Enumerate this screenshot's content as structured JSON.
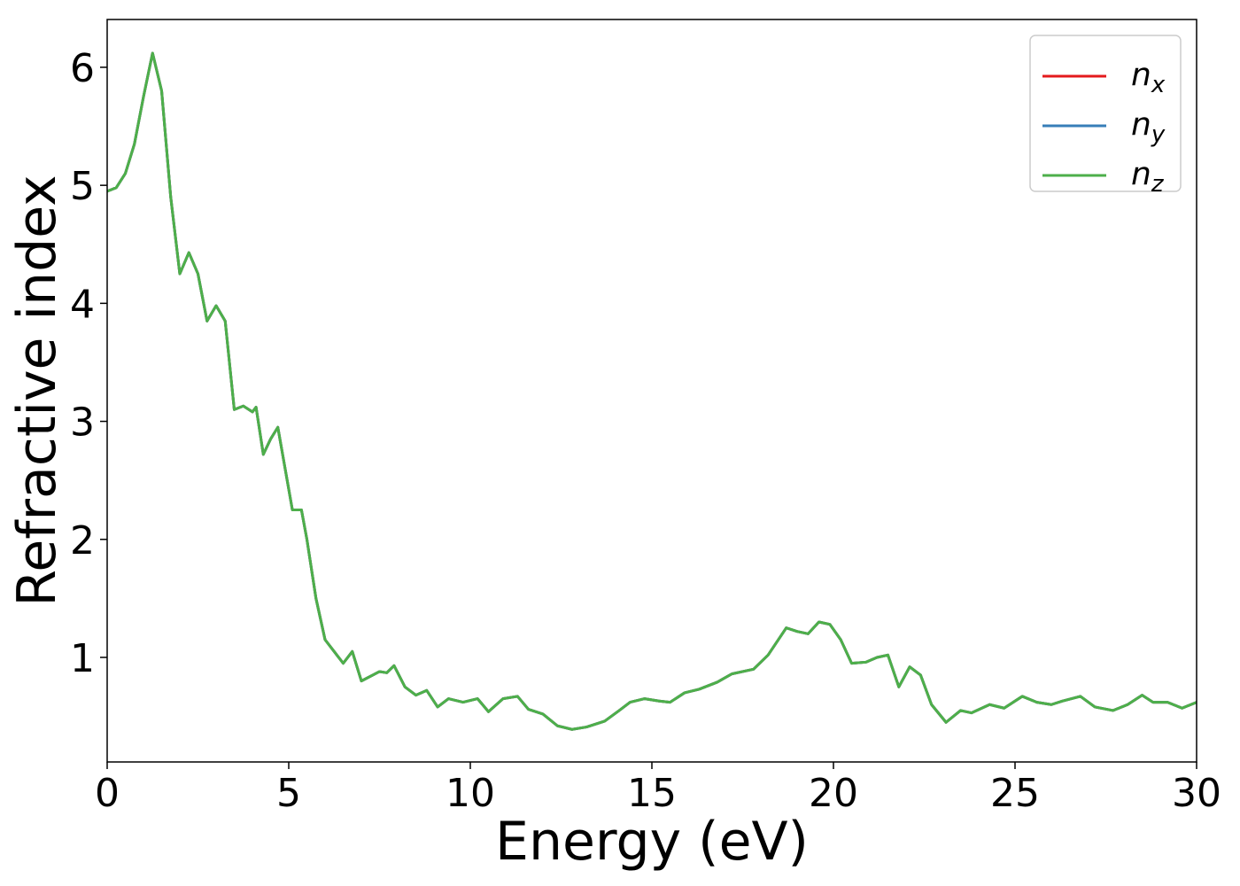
{
  "chart_data": {
    "type": "line",
    "xlabel": "Energy (eV)",
    "ylabel": "Refractive index",
    "x": [
      0,
      0.25,
      0.5,
      0.75,
      1.0,
      1.25,
      1.5,
      1.75,
      2.0,
      2.25,
      2.5,
      2.75,
      3.0,
      3.25,
      3.5,
      3.75,
      4.0,
      4.1,
      4.3,
      4.5,
      4.7,
      4.9,
      5.1,
      5.35,
      5.5,
      5.75,
      6.0,
      6.25,
      6.5,
      6.75,
      7.0,
      7.5,
      7.7,
      7.9,
      8.2,
      8.5,
      8.8,
      9.1,
      9.4,
      9.8,
      10.2,
      10.5,
      10.9,
      11.3,
      11.6,
      12.0,
      12.4,
      12.8,
      13.2,
      13.7,
      14.1,
      14.4,
      14.8,
      15.2,
      15.5,
      15.9,
      16.3,
      16.8,
      17.2,
      17.8,
      18.2,
      18.7,
      19.0,
      19.3,
      19.6,
      19.9,
      20.2,
      20.5,
      20.9,
      21.2,
      21.5,
      21.8,
      22.1,
      22.4,
      22.7,
      23.1,
      23.5,
      23.8,
      24.3,
      24.7,
      25.2,
      25.6,
      26.0,
      26.3,
      26.8,
      27.2,
      27.7,
      28.1,
      28.5,
      28.8,
      29.2,
      29.6,
      30.0
    ],
    "series": [
      {
        "name": "n_x",
        "color": "#e41a1c",
        "values": [
          4.95,
          4.98,
          5.1,
          5.35,
          5.75,
          6.12,
          5.8,
          4.9,
          4.25,
          4.43,
          4.25,
          3.85,
          3.98,
          3.85,
          3.1,
          3.13,
          3.08,
          3.12,
          2.72,
          2.85,
          2.95,
          2.6,
          2.25,
          2.25,
          2.0,
          1.5,
          1.15,
          1.05,
          0.95,
          1.05,
          0.8,
          0.88,
          0.87,
          0.93,
          0.75,
          0.68,
          0.72,
          0.58,
          0.65,
          0.62,
          0.65,
          0.54,
          0.65,
          0.67,
          0.56,
          0.52,
          0.42,
          0.39,
          0.41,
          0.46,
          0.55,
          0.62,
          0.65,
          0.63,
          0.62,
          0.7,
          0.73,
          0.79,
          0.86,
          0.9,
          1.02,
          1.25,
          1.22,
          1.2,
          1.3,
          1.28,
          1.15,
          0.95,
          0.96,
          1.0,
          1.02,
          0.75,
          0.92,
          0.85,
          0.6,
          0.45,
          0.55,
          0.53,
          0.6,
          0.57,
          0.67,
          0.62,
          0.6,
          0.63,
          0.67,
          0.58,
          0.55,
          0.6,
          0.68,
          0.62,
          0.62,
          0.57,
          0.62
        ]
      },
      {
        "name": "n_y",
        "color": "#377eb8",
        "values": [
          4.95,
          4.98,
          5.1,
          5.35,
          5.75,
          6.12,
          5.8,
          4.9,
          4.25,
          4.43,
          4.25,
          3.85,
          3.98,
          3.85,
          3.1,
          3.13,
          3.08,
          3.12,
          2.72,
          2.85,
          2.95,
          2.6,
          2.25,
          2.25,
          2.0,
          1.5,
          1.15,
          1.05,
          0.95,
          1.05,
          0.8,
          0.88,
          0.87,
          0.93,
          0.75,
          0.68,
          0.72,
          0.58,
          0.65,
          0.62,
          0.65,
          0.54,
          0.65,
          0.67,
          0.56,
          0.52,
          0.42,
          0.39,
          0.41,
          0.46,
          0.55,
          0.62,
          0.65,
          0.63,
          0.62,
          0.7,
          0.73,
          0.79,
          0.86,
          0.9,
          1.02,
          1.25,
          1.22,
          1.2,
          1.3,
          1.28,
          1.15,
          0.95,
          0.96,
          1.0,
          1.02,
          0.75,
          0.92,
          0.85,
          0.6,
          0.45,
          0.55,
          0.53,
          0.6,
          0.57,
          0.67,
          0.62,
          0.6,
          0.63,
          0.67,
          0.58,
          0.55,
          0.6,
          0.68,
          0.62,
          0.62,
          0.57,
          0.62
        ]
      },
      {
        "name": "n_z",
        "color": "#4daf4a",
        "values": [
          4.95,
          4.98,
          5.1,
          5.35,
          5.75,
          6.12,
          5.8,
          4.9,
          4.25,
          4.43,
          4.25,
          3.85,
          3.98,
          3.85,
          3.1,
          3.13,
          3.08,
          3.12,
          2.72,
          2.85,
          2.95,
          2.6,
          2.25,
          2.25,
          2.0,
          1.5,
          1.15,
          1.05,
          0.95,
          1.05,
          0.8,
          0.88,
          0.87,
          0.93,
          0.75,
          0.68,
          0.72,
          0.58,
          0.65,
          0.62,
          0.65,
          0.54,
          0.65,
          0.67,
          0.56,
          0.52,
          0.42,
          0.39,
          0.41,
          0.46,
          0.55,
          0.62,
          0.65,
          0.63,
          0.62,
          0.7,
          0.73,
          0.79,
          0.86,
          0.9,
          1.02,
          1.25,
          1.22,
          1.2,
          1.3,
          1.28,
          1.15,
          0.95,
          0.96,
          1.0,
          1.02,
          0.75,
          0.92,
          0.85,
          0.6,
          0.45,
          0.55,
          0.53,
          0.6,
          0.57,
          0.67,
          0.62,
          0.6,
          0.63,
          0.67,
          0.58,
          0.55,
          0.6,
          0.68,
          0.62,
          0.62,
          0.57,
          0.62
        ]
      }
    ],
    "xlim": [
      0,
      30
    ],
    "xticks": [
      0,
      5,
      10,
      15,
      20,
      25,
      30
    ],
    "ylim": [
      0.114,
      6.405
    ],
    "yticks": [
      1,
      2,
      3,
      4,
      5,
      6
    ],
    "grid": false,
    "legend": "upper right"
  }
}
